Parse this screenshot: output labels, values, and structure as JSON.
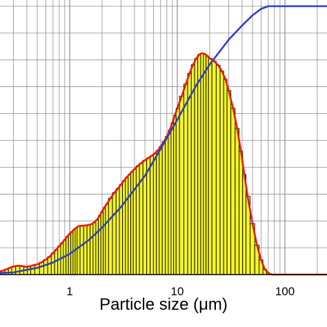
{
  "chart_data": {
    "type": "bar",
    "title": "",
    "xlabel": "Particle size (μm)",
    "ylabel": "",
    "x_scale": "log",
    "xlim": [
      0.1,
      500
    ],
    "ylim": [
      0,
      100
    ],
    "grid": true,
    "x_tick_labels": [
      {
        "value": 1,
        "label": "1"
      },
      {
        "value": 10,
        "label": "10"
      },
      {
        "value": 100,
        "label": "100"
      }
    ],
    "colors": {
      "bars": "#f4f42a",
      "bar_edge": "#000000",
      "distribution_line": "#e8171c",
      "cumulative_line": "#2b3fc4",
      "grid": "#8c8c8c"
    },
    "series": [
      {
        "kind": "bars",
        "x": [
          0.2,
          0.22,
          0.24,
          0.26,
          0.28,
          0.3,
          0.33,
          0.36,
          0.39,
          0.42,
          0.45,
          0.5,
          0.55,
          0.6,
          0.65,
          0.7,
          0.75,
          0.8,
          0.85,
          0.9,
          0.95,
          1.0,
          1.05,
          1.1,
          1.15,
          1.2,
          1.3,
          1.4,
          1.5,
          1.6,
          1.7,
          1.8,
          1.9,
          2.0,
          2.1,
          2.2,
          2.4,
          2.6,
          2.8,
          3.0,
          3.2,
          3.4,
          3.6,
          3.8,
          4.0,
          4.3,
          4.6,
          5.0,
          5.4,
          5.8,
          6.2,
          6.6,
          7.0,
          7.5,
          8.0,
          8.5,
          9.0,
          9.5,
          10,
          11,
          12,
          13,
          14,
          15,
          16,
          17,
          18,
          19,
          20,
          22,
          24,
          26,
          28,
          30,
          33,
          36,
          39,
          42,
          45,
          50,
          55,
          60,
          65,
          70,
          75
        ],
        "values": [
          0.5,
          1.0,
          1.5,
          2.0,
          2.6,
          3.0,
          3.3,
          3.2,
          2.9,
          3.0,
          3.4,
          3.8,
          4.6,
          5.6,
          6.7,
          8.0,
          9.3,
          10.6,
          11.8,
          13.0,
          14.2,
          15.2,
          16.0,
          16.8,
          17.4,
          18.0,
          18.2,
          18.3,
          18.5,
          18.8,
          19.5,
          20.5,
          22.0,
          23.5,
          25.0,
          26.2,
          28.5,
          30.5,
          32.0,
          33.5,
          35.0,
          36.3,
          37.4,
          38.4,
          39.3,
          40.5,
          41.5,
          42.6,
          43.5,
          44.3,
          45.2,
          46.3,
          47.7,
          49.5,
          51.5,
          53.8,
          56.5,
          59.3,
          62.0,
          66.5,
          71.0,
          75.0,
          78.2,
          80.5,
          82.0,
          82.5,
          82.2,
          81.5,
          80.6,
          79.5,
          78.0,
          75.8,
          72.8,
          68.6,
          62.0,
          54.5,
          46.0,
          37.3,
          29.2,
          19.0,
          11.0,
          5.5,
          2.0,
          0.6,
          0.0
        ]
      },
      {
        "kind": "cumulative",
        "x": [
          0.1,
          0.3,
          0.5,
          0.7,
          1.0,
          1.5,
          2.0,
          3.0,
          5.0,
          7.0,
          10,
          15,
          20,
          30,
          40,
          50,
          60,
          70,
          80,
          500
        ],
        "values": [
          0.0,
          0.8,
          2.5,
          4.5,
          7.7,
          12.8,
          17.5,
          25.2,
          36.8,
          46.8,
          57.7,
          70.5,
          78.3,
          87.5,
          92.8,
          96.6,
          99.0,
          100.0,
          100.0,
          100.0
        ]
      }
    ]
  }
}
